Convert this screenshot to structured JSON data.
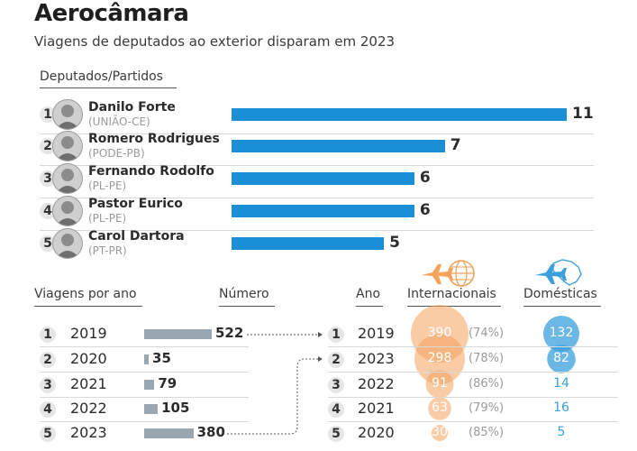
{
  "title": "Aerocâmara",
  "subtitle": "Viagens de deputados ao exterior disparam em 2023",
  "deputies_header": "Deputados/Partidos",
  "deputies": [
    {
      "rank": "1",
      "name": "Danilo Forte",
      "party": "(UNIÃO-CE)",
      "value_label": "11"
    },
    {
      "rank": "2",
      "name": "Romero Rodrigues",
      "party": "(PODE-PB)",
      "value_label": "7"
    },
    {
      "rank": "3",
      "name": "Fernando Rodolfo",
      "party": "(PL-PE)",
      "value_label": "6"
    },
    {
      "rank": "4",
      "name": "Pastor Eurico",
      "party": "(PL-PE)",
      "value_label": "6"
    },
    {
      "rank": "5",
      "name": "Carol Dartora",
      "party": "(PT-PR)",
      "value_label": "5"
    }
  ],
  "yearly": {
    "header_left": "Viagens por ano",
    "header_number": "Número",
    "rows": [
      {
        "rank": "1",
        "year": "2019",
        "value_label": "522"
      },
      {
        "rank": "2",
        "year": "2020",
        "value_label": "35"
      },
      {
        "rank": "3",
        "year": "2021",
        "value_label": "79"
      },
      {
        "rank": "4",
        "year": "2022",
        "value_label": "105"
      },
      {
        "rank": "5",
        "year": "2023",
        "value_label": "380"
      }
    ]
  },
  "ranked": {
    "header_year": "Ano",
    "header_int": "Internacionais",
    "header_dom": "Domésticas",
    "rows": [
      {
        "rank": "1",
        "year": "2019",
        "int_label": "390",
        "pct": "(74%)",
        "dom_label": "132"
      },
      {
        "rank": "2",
        "year": "2023",
        "int_label": "298",
        "pct": "(78%)",
        "dom_label": "82"
      },
      {
        "rank": "3",
        "year": "2022",
        "int_label": "91",
        "pct": "(86%)",
        "dom_label": "14"
      },
      {
        "rank": "4",
        "year": "2021",
        "int_label": "63",
        "pct": "(79%)",
        "dom_label": "16"
      },
      {
        "rank": "5",
        "year": "2020",
        "int_label": "30",
        "pct": "(85%)",
        "dom_label": "5"
      }
    ]
  },
  "colors": {
    "blue_bar": "#1b8fd6",
    "gray_bar": "#9aa7b0",
    "orange": "#f4a25c",
    "light_blue": "#3a9fdc"
  },
  "icons": {
    "international": "airplane-globe-icon",
    "domestic": "airplane-brazil-map-icon"
  },
  "chart_data": [
    {
      "type": "bar",
      "categories": [
        "Danilo Forte",
        "Romero Rodrigues",
        "Fernando Rodolfo",
        "Pastor Eurico",
        "Carol Dartora"
      ],
      "values": [
        11,
        7,
        6,
        6,
        5
      ],
      "xlim": [
        0,
        11
      ]
    },
    {
      "type": "bar",
      "categories": [
        "2019",
        "2020",
        "2021",
        "2022",
        "2023"
      ],
      "values": [
        522,
        35,
        79,
        105,
        380
      ],
      "xlim": [
        0,
        522
      ]
    },
    {
      "type": "scatter",
      "categories": [
        "2019",
        "2023",
        "2022",
        "2021",
        "2020"
      ],
      "series": [
        {
          "name": "Internacionais",
          "values": [
            390,
            298,
            91,
            63,
            30
          ],
          "share_percent": [
            74,
            78,
            86,
            79,
            85
          ]
        },
        {
          "name": "Domésticas",
          "values": [
            132,
            82,
            14,
            16,
            5
          ]
        }
      ]
    }
  ]
}
